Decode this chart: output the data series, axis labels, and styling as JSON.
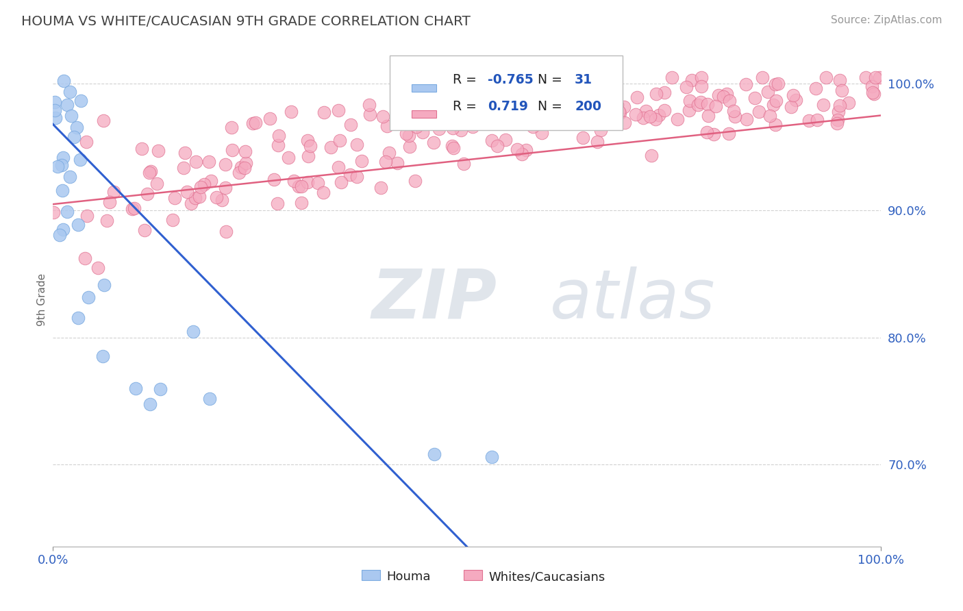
{
  "title": "HOUMA VS WHITE/CAUCASIAN 9TH GRADE CORRELATION CHART",
  "source_text": "Source: ZipAtlas.com",
  "ylabel": "9th Grade",
  "watermark_zip": "ZIP",
  "watermark_atlas": "atlas",
  "houma_color": "#aac8f0",
  "houma_edge": "#7aaae0",
  "pink_color": "#f5aac0",
  "pink_edge": "#e07090",
  "blue_line_color": "#3060d0",
  "pink_line_color": "#e06080",
  "title_color": "#444444",
  "axis_label_color": "#3060C0",
  "grid_color": "#cccccc",
  "background_color": "#FFFFFF",
  "xmin": 0.0,
  "xmax": 1.0,
  "ymin": 0.635,
  "ymax": 1.025,
  "ytick_positions": [
    0.7,
    0.8,
    0.9,
    1.0
  ],
  "ytick_labels": [
    "70.0%",
    "80.0%",
    "90.0%",
    "100.0%"
  ],
  "n_houma": 31,
  "n_pink": 200,
  "r_houma": -0.765,
  "r_pink": 0.719
}
